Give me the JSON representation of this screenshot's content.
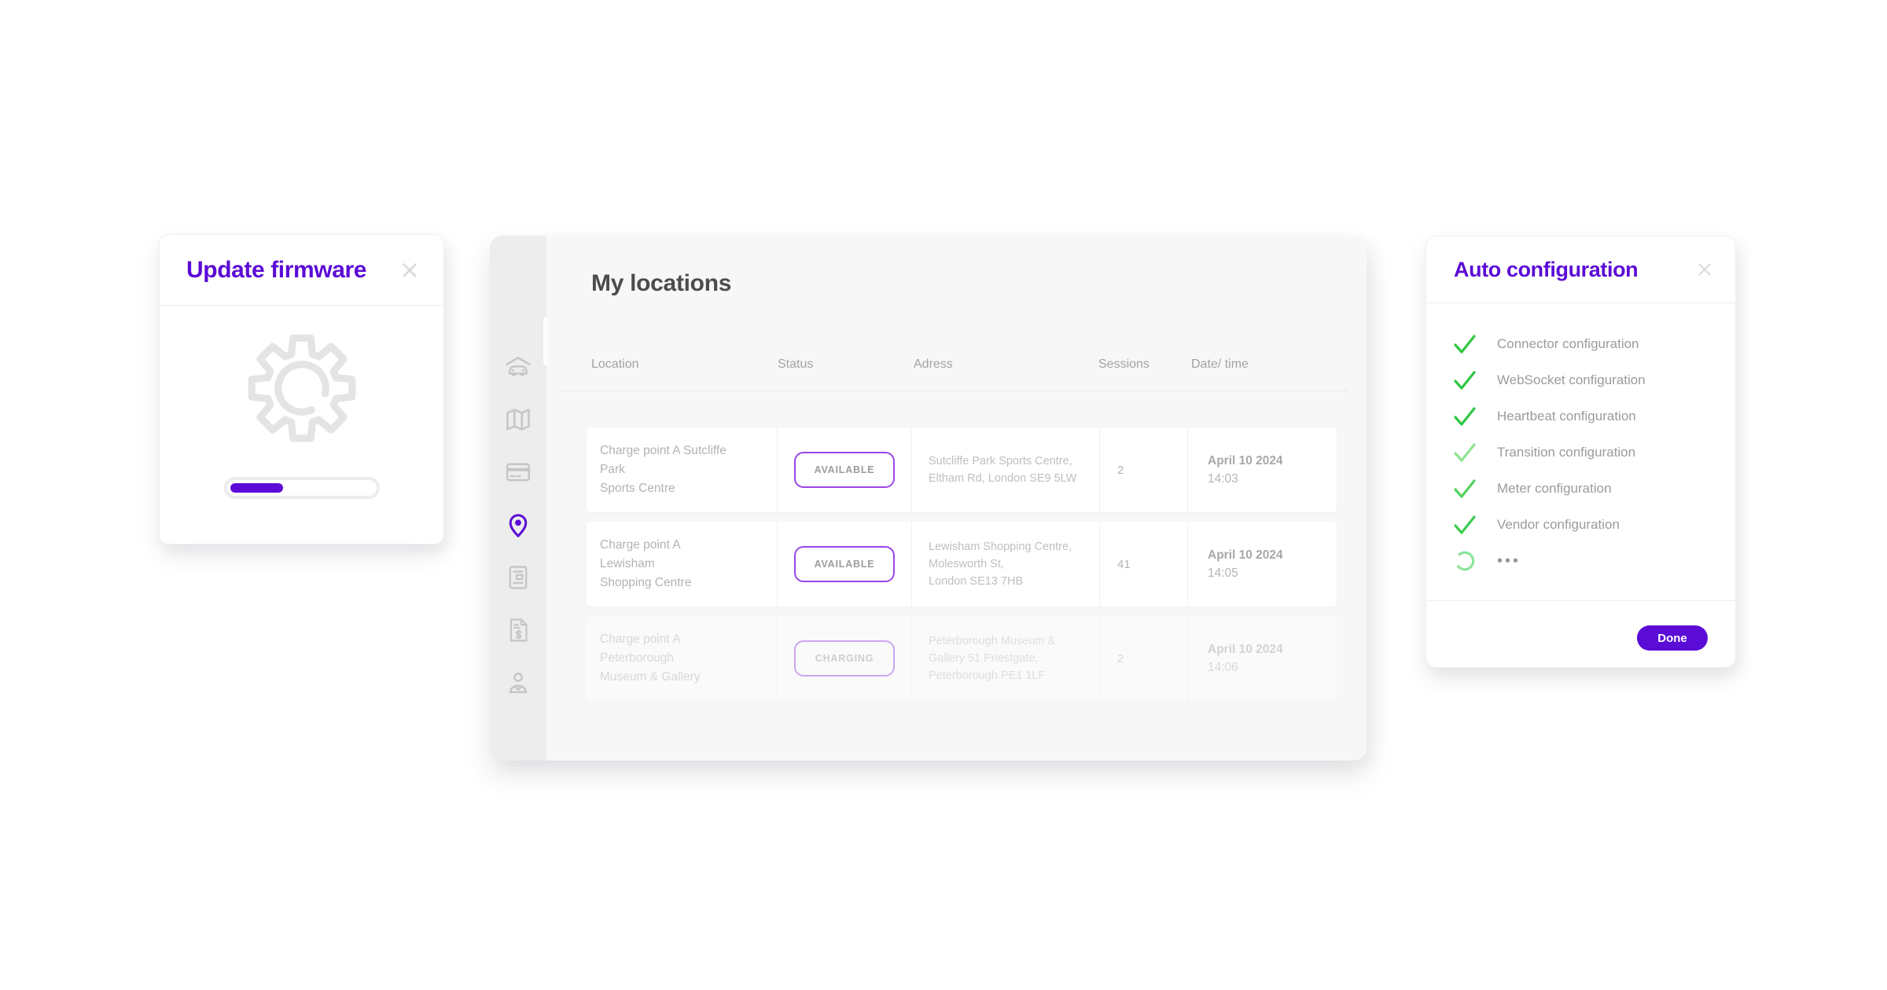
{
  "colors": {
    "accent": "#5b0bd6",
    "success_green": "#2fc643",
    "pending_green": "#8ce49b",
    "pill_border": "#9a46e6"
  },
  "update_firmware_modal": {
    "title": "Update firmware",
    "progress_percent": 37
  },
  "locations_panel": {
    "title": "My locations",
    "sidebar_icons": [
      "garage-car",
      "map",
      "payment-card",
      "location-pin",
      "document",
      "invoice",
      "account"
    ],
    "active_icon": "location-pin",
    "table": {
      "columns": [
        "Location",
        "Status",
        "Adress",
        "Sessions",
        "Date/ time"
      ],
      "rows": [
        {
          "location_lines": [
            "Charge point A Sutcliffe",
            "Park",
            "Sports Centre"
          ],
          "status": "AVAILABLE",
          "address_lines": [
            "Sutcliffe Park Sports Centre,",
            "Eltham Rd, London SE9 5LW",
            ""
          ],
          "sessions": "2",
          "date": "April 10 2024",
          "time": "14:03"
        },
        {
          "location_lines": [
            "Charge point A",
            "Lewisham",
            "Shopping Centre"
          ],
          "status": "AVAILABLE",
          "address_lines": [
            "Lewisham Shopping Centre,",
            "Molesworth St,",
            "London SE13 7HB"
          ],
          "sessions": "41",
          "date": "April 10 2024",
          "time": "14:05"
        },
        {
          "location_lines": [
            "Charge point A",
            "Peterborough",
            "Museum & Gallery"
          ],
          "status": "CHARGING",
          "address_lines": [
            "Peterborough Museum &",
            "Gallery 51 Priestgate,",
            "Peterborough PE1 1LF"
          ],
          "sessions": "2",
          "date": "April 10 2024",
          "time": "14:06"
        }
      ]
    }
  },
  "auto_config_modal": {
    "title": "Auto configuration",
    "items": [
      {
        "label": "Connector configuration",
        "state": "done",
        "check_color": "#2fc643"
      },
      {
        "label": "WebSocket configuration",
        "state": "done",
        "check_color": "#2fc643"
      },
      {
        "label": "Heartbeat configuration",
        "state": "done",
        "check_color": "#2fc643"
      },
      {
        "label": "Transition configuration",
        "state": "done",
        "check_color": "#8ce48f"
      },
      {
        "label": "Meter configuration",
        "state": "done",
        "check_color": "#52d25d"
      },
      {
        "label": "Vendor configuration",
        "state": "done",
        "check_color": "#3ecc50"
      },
      {
        "label": "•••",
        "state": "pending",
        "check_color": "#8ce49b"
      }
    ],
    "done_button": "Done"
  }
}
